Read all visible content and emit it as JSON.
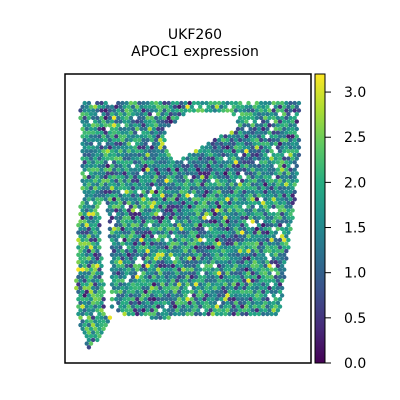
{
  "chart_data": {
    "type": "scatter",
    "title_lines": [
      "UKF260",
      "APOC1 expression"
    ],
    "xlabel": "",
    "ylabel": "",
    "xticks_visible": false,
    "yticks_visible": false,
    "colorbar": {
      "colormap": "viridis",
      "range": [
        0.0,
        3.2
      ],
      "ticks": [
        0.0,
        0.5,
        1.0,
        1.5,
        2.0,
        2.5,
        3.0
      ],
      "tick_labels": [
        "0.0",
        "0.5",
        "1.0",
        "1.5",
        "2.0",
        "2.5",
        "3.0"
      ],
      "placement": "right"
    },
    "points_note": "spatial spots colored by APOC1 expression",
    "marker": "hexagon"
  }
}
